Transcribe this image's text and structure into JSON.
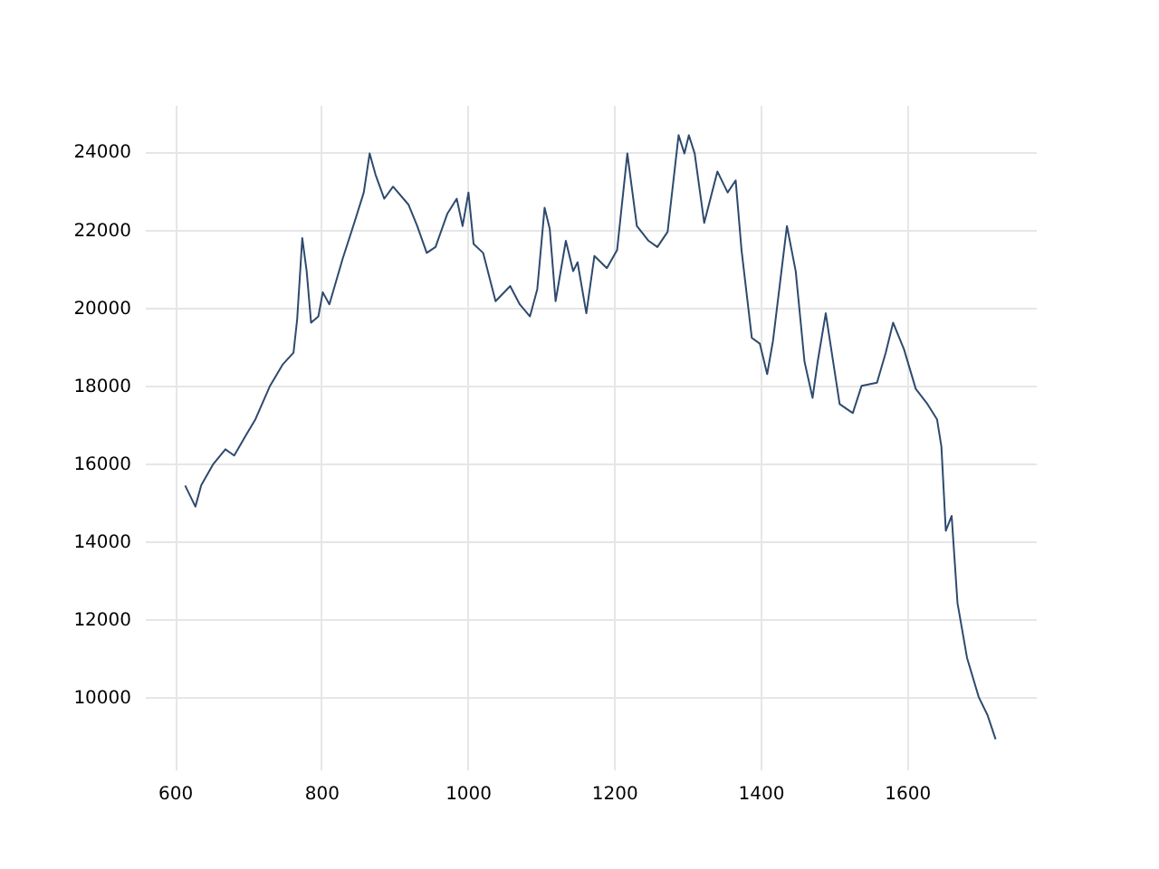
{
  "chart_data": {
    "type": "line",
    "x": [
      614,
      628,
      636,
      652,
      669,
      681,
      698,
      710,
      730,
      747,
      762,
      767,
      774,
      780,
      786,
      796,
      802,
      811,
      829,
      845,
      858,
      866,
      874,
      886,
      898,
      919,
      931,
      944,
      956,
      972,
      985,
      993,
      1001,
      1008,
      1021,
      1038,
      1058,
      1071,
      1085,
      1095,
      1105,
      1112,
      1120,
      1134,
      1144,
      1150,
      1162,
      1173,
      1190,
      1204,
      1218,
      1231,
      1247,
      1259,
      1273,
      1288,
      1296,
      1302,
      1310,
      1323,
      1341,
      1355,
      1366,
      1374,
      1388,
      1399,
      1409,
      1417,
      1436,
      1448,
      1460,
      1471,
      1478,
      1489,
      1508,
      1526,
      1538,
      1559,
      1571,
      1581,
      1596,
      1612,
      1628,
      1641,
      1647,
      1653,
      1661,
      1669,
      1682,
      1698,
      1710,
      1721
    ],
    "series": [
      {
        "color": "#2e4a6e",
        "values": [
          15430,
          14890,
          15440,
          15970,
          16360,
          16200,
          16750,
          17130,
          17990,
          18530,
          18840,
          19690,
          21780,
          20930,
          19610,
          19770,
          20390,
          20080,
          21240,
          22170,
          22950,
          23950,
          23410,
          22790,
          23100,
          22640,
          22090,
          21400,
          21550,
          22400,
          22790,
          22090,
          22950,
          21630,
          21400,
          20160,
          20550,
          20080,
          19770,
          20470,
          22560,
          22020,
          20160,
          21710,
          20930,
          21160,
          19850,
          21320,
          21010,
          21470,
          23950,
          22090,
          21710,
          21550,
          21940,
          24420,
          23950,
          24420,
          23950,
          22170,
          23490,
          22950,
          23260,
          21470,
          19220,
          19070,
          18290,
          19150,
          22090,
          20930,
          18610,
          17680,
          18610,
          19850,
          17520,
          17290,
          17990,
          18070,
          18840,
          19610,
          18920,
          17910,
          17520,
          17130,
          16430,
          14270,
          14650,
          12410,
          11010,
          10000,
          9540,
          8920
        ]
      }
    ],
    "xlim": [
      559,
      1776
    ],
    "xticks": [
      600,
      800,
      1000,
      1200,
      1400,
      1600
    ],
    "ylim": [
      8145,
      25195
    ],
    "yticks": [
      10000,
      12000,
      14000,
      16000,
      18000,
      20000,
      22000,
      24000
    ],
    "grid": true,
    "marker": "none",
    "line_style": "solid"
  }
}
